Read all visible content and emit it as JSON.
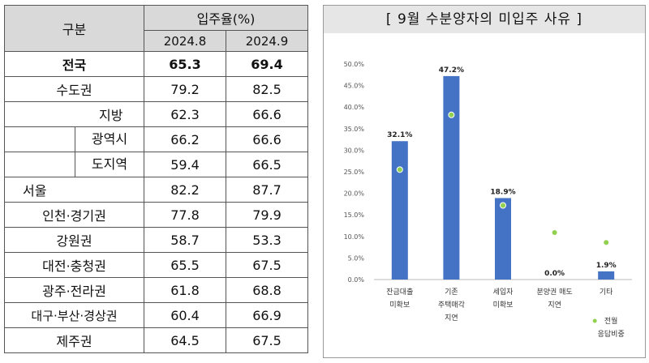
{
  "table": {
    "header_group": "구분",
    "header_rate": "입주율(%)",
    "col_a": "2024.8",
    "col_b": "2024.9",
    "rows": [
      {
        "name": "전국",
        "a": "65.3",
        "b": "69.4"
      },
      {
        "name": "수도권",
        "a": "79.2",
        "b": "82.5"
      },
      {
        "name": "지방",
        "a": "62.3",
        "b": "66.6"
      },
      {
        "name": "광역시",
        "a": "66.2",
        "b": "66.6"
      },
      {
        "name": "도지역",
        "a": "59.4",
        "b": "66.5"
      },
      {
        "name": "서울",
        "a": "82.2",
        "b": "87.7"
      },
      {
        "name": "인천·경기권",
        "a": "77.8",
        "b": "79.9"
      },
      {
        "name": "강원권",
        "a": "58.7",
        "b": "53.3"
      },
      {
        "name": "대전·충청권",
        "a": "65.5",
        "b": "67.5"
      },
      {
        "name": "광주·전라권",
        "a": "61.8",
        "b": "68.8"
      },
      {
        "name": "대구·부산·경상권",
        "a": "60.4",
        "b": "66.9"
      },
      {
        "name": "제주권",
        "a": "64.5",
        "b": "67.5"
      }
    ]
  },
  "chart_title": "[ 9월  수분양자의  미입주  사유 ]",
  "chart_data": {
    "type": "bar",
    "title": "[ 9월  수분양자의  미입주  사유 ]",
    "categories": [
      [
        "잔금대출",
        "미확보"
      ],
      [
        "기존",
        "주택매각",
        "지연"
      ],
      [
        "세입자",
        "미확보"
      ],
      [
        "분양권 매도",
        "지연"
      ],
      [
        "기타"
      ]
    ],
    "series": [
      {
        "values": [
          32.1,
          47.2,
          18.9,
          0.0,
          1.9
        ],
        "labels": [
          "32.1%",
          "47.2%",
          "18.9%",
          "0.0%",
          "1.9%"
        ],
        "color": "#4472c4"
      },
      {
        "name": "전월 응답비중",
        "values": [
          25.5,
          38.2,
          17.2,
          10.9,
          8.6
        ],
        "color": "#92d050"
      }
    ],
    "yticks": [
      "50.0%",
      "45.0%",
      "40.0%",
      "35.0%",
      "30.0%",
      "25.0%",
      "20.0%",
      "15.0%",
      "10.0%",
      "5.0%",
      "0.0%"
    ],
    "ylim": [
      0,
      50
    ],
    "legend": {
      "label_1": "전월",
      "label_2": "응답비중",
      "position": "bottom-right"
    },
    "grid": false
  }
}
